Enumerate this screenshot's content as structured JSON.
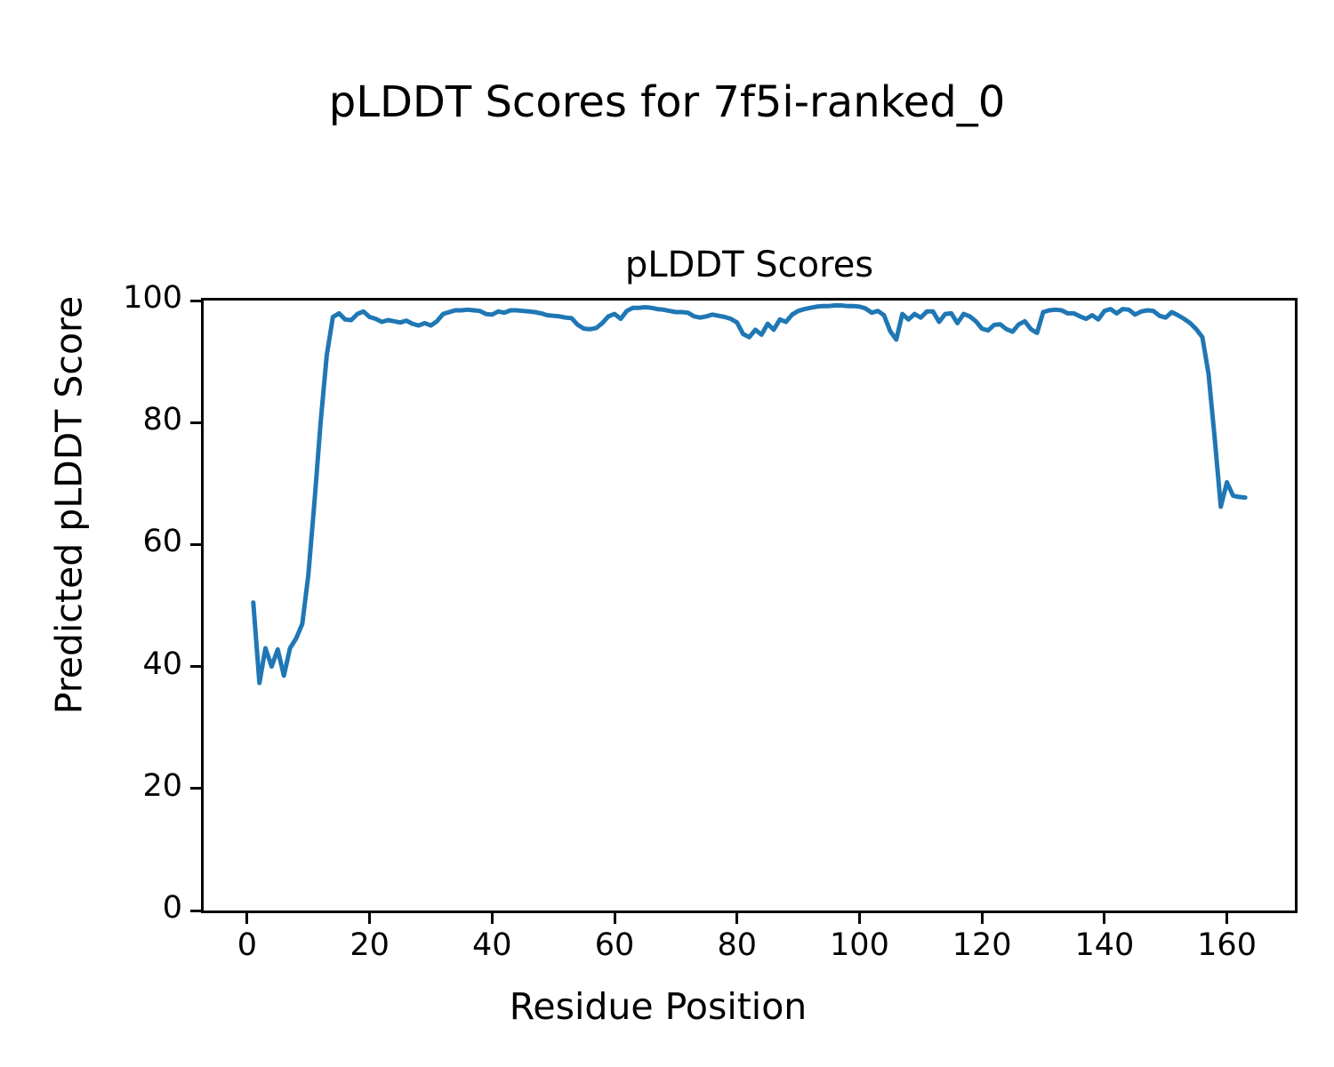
{
  "figure": {
    "suptitle": "pLDDT Scores for 7f5i-ranked_0"
  },
  "axes": {
    "title": "pLDDT Scores",
    "xlabel": "Residue Position",
    "ylabel": "Predicted pLDDT Score",
    "x_ticks": [
      0,
      20,
      40,
      60,
      80,
      100,
      120,
      140,
      160
    ],
    "y_ticks": [
      0,
      20,
      40,
      60,
      80,
      100
    ]
  },
  "colors": {
    "line": "#1f77b4",
    "spine": "#000000",
    "background": "#ffffff"
  },
  "chart_data": {
    "type": "line",
    "suptitle": "pLDDT Scores for 7f5i-ranked_0",
    "title": "pLDDT Scores",
    "xlabel": "Residue Position",
    "ylabel": "Predicted pLDDT Score",
    "xlim": [
      -7.1,
      171.1
    ],
    "ylim": [
      0,
      100
    ],
    "grid": false,
    "legend": false,
    "series": [
      {
        "name": "pLDDT",
        "color": "#1f77b4",
        "x_start": 1,
        "x_step": 1,
        "n_points": 163,
        "y": [
          50.5,
          37.3,
          43.0,
          40.0,
          42.8,
          38.5,
          43.0,
          44.6,
          47.0,
          55.0,
          67.0,
          80.0,
          91.0,
          97.3,
          97.9,
          96.9,
          96.8,
          97.8,
          98.2,
          97.3,
          97.0,
          96.5,
          96.8,
          96.6,
          96.4,
          96.7,
          96.2,
          95.9,
          96.3,
          95.9,
          96.6,
          97.8,
          98.1,
          98.4,
          98.4,
          98.5,
          98.4,
          98.3,
          97.8,
          97.7,
          98.2,
          98.0,
          98.4,
          98.4,
          98.3,
          98.2,
          98.1,
          97.9,
          97.6,
          97.5,
          97.4,
          97.2,
          97.1,
          96.0,
          95.4,
          95.3,
          95.5,
          96.3,
          97.4,
          97.8,
          97.0,
          98.3,
          98.8,
          98.8,
          98.9,
          98.8,
          98.6,
          98.5,
          98.3,
          98.1,
          98.1,
          98.0,
          97.4,
          97.2,
          97.4,
          97.7,
          97.5,
          97.3,
          97.0,
          96.4,
          94.5,
          94.0,
          95.2,
          94.4,
          96.2,
          95.2,
          96.9,
          96.5,
          97.7,
          98.3,
          98.6,
          98.8,
          99.0,
          99.1,
          99.1,
          99.2,
          99.2,
          99.1,
          99.1,
          99.0,
          98.7,
          98.0,
          98.3,
          97.6,
          95.0,
          93.6,
          97.8,
          96.9,
          97.8,
          97.2,
          98.2,
          98.2,
          96.5,
          97.8,
          97.9,
          96.3,
          97.8,
          97.4,
          96.6,
          95.4,
          95.1,
          96.0,
          96.1,
          95.3,
          94.9,
          96.1,
          96.6,
          95.3,
          94.7,
          98.1,
          98.4,
          98.5,
          98.4,
          97.9,
          97.9,
          97.4,
          97.0,
          97.6,
          96.9,
          98.3,
          98.6,
          97.9,
          98.6,
          98.5,
          97.7,
          98.2,
          98.4,
          98.3,
          97.5,
          97.2,
          98.1,
          97.6,
          97.0,
          96.3,
          95.3,
          94.0,
          88.0,
          77.5,
          66.2,
          70.2,
          68.0,
          67.8,
          67.7
        ]
      }
    ]
  }
}
